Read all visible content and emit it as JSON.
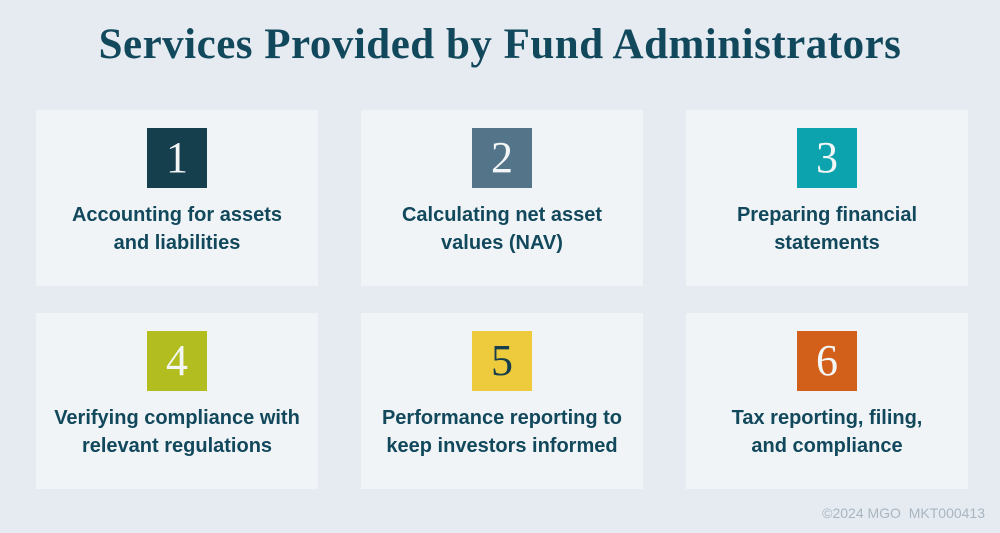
{
  "title": "Services Provided by Fund Administrators",
  "colors": {
    "page_bg": "#e5ebf1",
    "card_bg": "#f0f4f7",
    "ink": "#12485c",
    "footer_text": "#a9b5c0"
  },
  "cards": [
    {
      "number": "1",
      "label": "Accounting for assets\nand liabilities",
      "box_color": "#163f4e",
      "number_color": "#f3f6f6"
    },
    {
      "number": "2",
      "label": "Calculating net asset\nvalues (NAV)",
      "box_color": "#54748a",
      "number_color": "#f3f6f6"
    },
    {
      "number": "3",
      "label": "Preparing financial\nstatements",
      "box_color": "#0da3ae",
      "number_color": "#f3f6f6"
    },
    {
      "number": "4",
      "label": "Verifying compliance with\nrelevant regulations",
      "box_color": "#b2bd20",
      "number_color": "#f3f6f6"
    },
    {
      "number": "5",
      "label": "Performance reporting to\nkeep investors informed",
      "box_color": "#eecb3c",
      "number_color": "#163f4e"
    },
    {
      "number": "6",
      "label": "Tax reporting, filing,\nand compliance",
      "box_color": "#d2601b",
      "number_color": "#f3f6f6"
    }
  ],
  "footer": {
    "text": "©2024 MGO  MKT000413"
  }
}
